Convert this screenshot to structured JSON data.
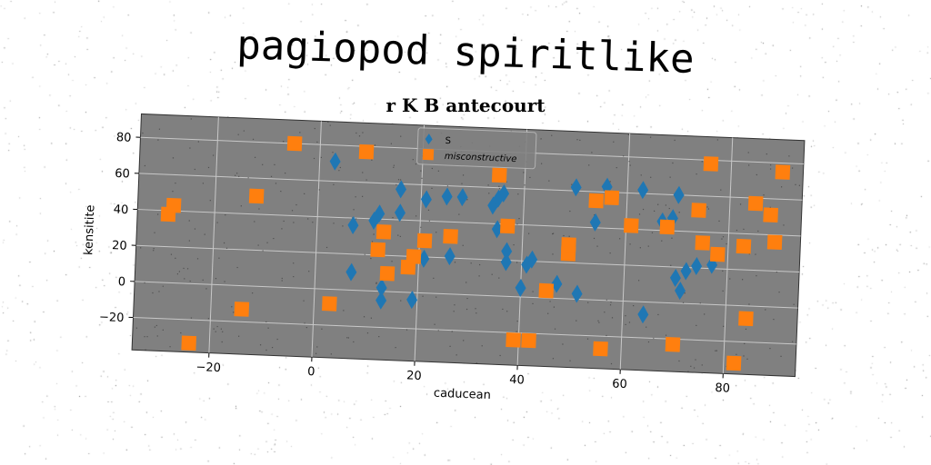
{
  "title": "pagiopod spiritlike",
  "subtitle": "r K B antecourt",
  "chart_data": {
    "type": "scatter",
    "xlabel": "caducean",
    "ylabel": "kensitite",
    "xlim": [
      -35,
      94
    ],
    "ylim": [
      -38,
      93
    ],
    "xticks": [
      -20,
      0,
      20,
      40,
      60,
      80
    ],
    "yticks": [
      -20,
      0,
      20,
      40,
      60,
      80
    ],
    "grid": true,
    "legend_position": "top-center",
    "colors": {
      "plot_background": "#808080",
      "grid": "#c8c8c8"
    },
    "series": [
      {
        "name": "S",
        "marker": "diamond",
        "color": "#1f77b4",
        "points": [
          [
            3,
            71
          ],
          [
            7,
            36
          ],
          [
            7,
            10
          ],
          [
            11,
            39
          ],
          [
            12,
            43
          ],
          [
            13,
            2
          ],
          [
            13,
            -5
          ],
          [
            16,
            57
          ],
          [
            16,
            44
          ],
          [
            19,
            -4
          ],
          [
            21,
            52
          ],
          [
            21,
            19
          ],
          [
            25,
            54
          ],
          [
            26,
            21
          ],
          [
            28,
            54
          ],
          [
            34,
            50
          ],
          [
            35,
            54
          ],
          [
            35,
            37
          ],
          [
            36,
            57
          ],
          [
            37,
            19
          ],
          [
            37,
            25
          ],
          [
            40,
            5
          ],
          [
            41,
            18
          ],
          [
            42,
            21
          ],
          [
            47,
            8
          ],
          [
            50,
            62
          ],
          [
            51,
            3
          ],
          [
            54,
            43
          ],
          [
            56,
            63
          ],
          [
            63,
            62
          ],
          [
            64,
            -7
          ],
          [
            67,
            45
          ],
          [
            69,
            47
          ],
          [
            70,
            14
          ],
          [
            70,
            60
          ],
          [
            71,
            7
          ],
          [
            72,
            18
          ],
          [
            74,
            21
          ],
          [
            77,
            22
          ]
        ]
      },
      {
        "name": "misconstructive",
        "marker": "square",
        "color": "#ff7f0e",
        "points": [
          [
            -29,
            38
          ],
          [
            -28,
            43
          ],
          [
            -24,
            -33
          ],
          [
            -14,
            -13
          ],
          [
            -12,
            50
          ],
          [
            -5,
            80
          ],
          [
            3,
            -8
          ],
          [
            9,
            77
          ],
          [
            12,
            23
          ],
          [
            13,
            33
          ],
          [
            14,
            10
          ],
          [
            18,
            14
          ],
          [
            19,
            20
          ],
          [
            21,
            29
          ],
          [
            26,
            32
          ],
          [
            35,
            67
          ],
          [
            37,
            39
          ],
          [
            39,
            -24
          ],
          [
            42,
            -24
          ],
          [
            45,
            4
          ],
          [
            49,
            25
          ],
          [
            49,
            30
          ],
          [
            54,
            55
          ],
          [
            56,
            -27
          ],
          [
            57,
            57
          ],
          [
            61,
            42
          ],
          [
            68,
            42
          ],
          [
            70,
            -23
          ],
          [
            74,
            52
          ],
          [
            75,
            34
          ],
          [
            76,
            78
          ],
          [
            78,
            28
          ],
          [
            82,
            -32
          ],
          [
            83,
            33
          ],
          [
            84,
            -7
          ],
          [
            85,
            57
          ],
          [
            88,
            51
          ],
          [
            89,
            36
          ],
          [
            90,
            75
          ]
        ]
      }
    ]
  }
}
